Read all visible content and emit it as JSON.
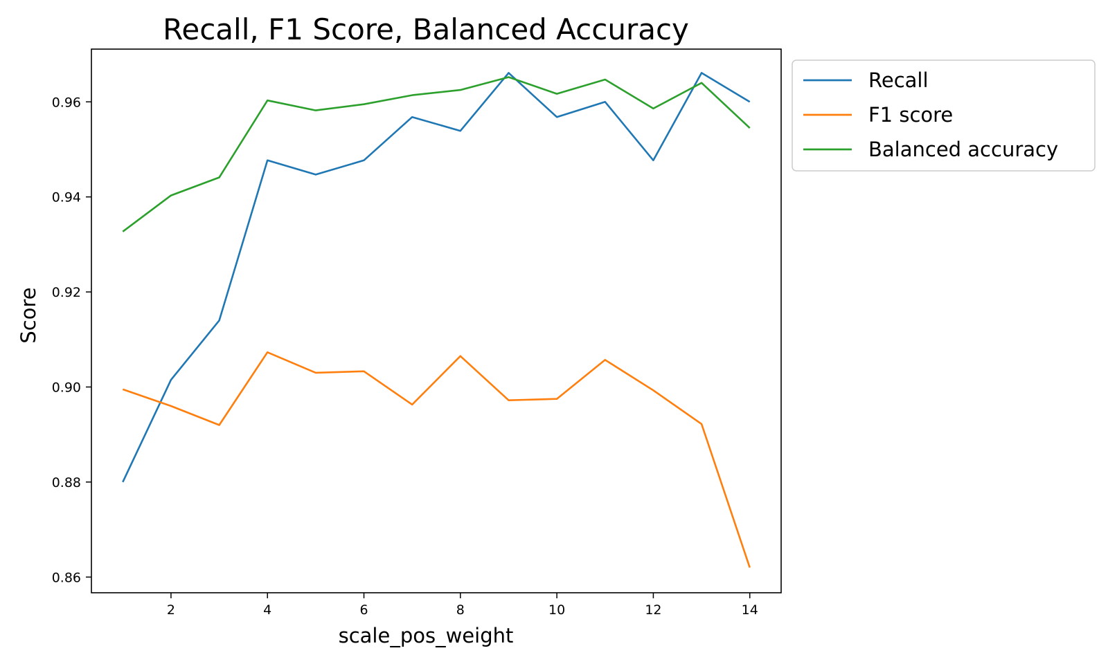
{
  "chart_data": {
    "type": "line",
    "title": "Recall, F1 Score, Balanced Accuracy",
    "xlabel": "scale_pos_weight",
    "ylabel": "Score",
    "x": [
      1,
      2,
      3,
      4,
      5,
      6,
      7,
      8,
      9,
      10,
      11,
      12,
      13,
      14
    ],
    "xlim": [
      0.35,
      14.65
    ],
    "ylim": [
      0.8567,
      0.9711
    ],
    "xticks": [
      2,
      4,
      6,
      8,
      10,
      12,
      14
    ],
    "xtick_labels": [
      "2",
      "4",
      "6",
      "8",
      "10",
      "12",
      "14"
    ],
    "yticks": [
      0.86,
      0.88,
      0.9,
      0.92,
      0.94,
      0.96
    ],
    "ytick_labels": [
      "0.86",
      "0.88",
      "0.90",
      "0.92",
      "0.94",
      "0.96"
    ],
    "grid": false,
    "legend_position": "outside-top-right",
    "series": [
      {
        "name": "Recall",
        "color": "#1f77b4",
        "values": [
          0.88,
          0.9015,
          0.914,
          0.9477,
          0.9447,
          0.9477,
          0.9568,
          0.9539,
          0.9661,
          0.9568,
          0.96,
          0.9477,
          0.9661,
          0.96
        ]
      },
      {
        "name": "F1 score",
        "color": "#ff7f0e",
        "values": [
          0.8995,
          0.896,
          0.892,
          0.9073,
          0.903,
          0.9033,
          0.8963,
          0.9065,
          0.8972,
          0.8975,
          0.9057,
          0.8993,
          0.8922,
          0.862
        ]
      },
      {
        "name": "Balanced accuracy",
        "color": "#2ca02c",
        "values": [
          0.9327,
          0.9403,
          0.9441,
          0.9603,
          0.9582,
          0.9595,
          0.9614,
          0.9625,
          0.9652,
          0.9617,
          0.9647,
          0.9586,
          0.964,
          0.9545
        ]
      }
    ]
  }
}
